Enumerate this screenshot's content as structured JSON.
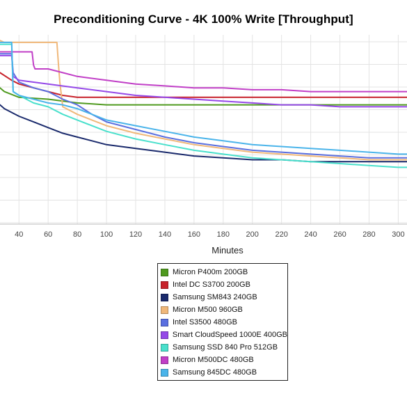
{
  "chart_data": {
    "type": "line",
    "title": "Preconditioning Curve - 4K 100% Write [Throughput]",
    "xlabel": "Minutes",
    "ylabel": "",
    "x_ticks": [
      40,
      60,
      80,
      100,
      120,
      140,
      160,
      180,
      200,
      220,
      240,
      260,
      280,
      300
    ],
    "xlim": [
      27,
      306
    ],
    "ylim": [
      0,
      100
    ],
    "grid": true,
    "legend_position": "bottom-center",
    "series": [
      {
        "name": "Micron P400m 200GB",
        "color": "#4f9a1f",
        "values": [
          [
            27,
            72
          ],
          [
            30,
            70
          ],
          [
            40,
            67
          ],
          [
            60,
            66
          ],
          [
            80,
            64
          ],
          [
            100,
            63
          ],
          [
            120,
            63
          ],
          [
            140,
            63
          ],
          [
            160,
            63
          ],
          [
            180,
            63
          ],
          [
            200,
            63
          ],
          [
            220,
            63
          ],
          [
            240,
            63
          ],
          [
            260,
            63
          ],
          [
            280,
            63
          ],
          [
            300,
            63
          ],
          [
            306,
            63
          ]
        ]
      },
      {
        "name": "Intel DC S3700 200GB",
        "color": "#c8232c",
        "values": [
          [
            27,
            80
          ],
          [
            35,
            76
          ],
          [
            40,
            74
          ],
          [
            50,
            72
          ],
          [
            60,
            70
          ],
          [
            70,
            68
          ],
          [
            80,
            67
          ],
          [
            90,
            67
          ],
          [
            100,
            67
          ],
          [
            120,
            67
          ],
          [
            140,
            67
          ],
          [
            160,
            67
          ],
          [
            180,
            67
          ],
          [
            200,
            67
          ],
          [
            220,
            67
          ],
          [
            240,
            67
          ],
          [
            260,
            67
          ],
          [
            280,
            67
          ],
          [
            300,
            67
          ],
          [
            306,
            67
          ]
        ]
      },
      {
        "name": "Samsung SM843 240GB",
        "color": "#1a2a6c",
        "values": [
          [
            27,
            63
          ],
          [
            30,
            61
          ],
          [
            40,
            57
          ],
          [
            50,
            54
          ],
          [
            60,
            51
          ],
          [
            70,
            48
          ],
          [
            80,
            46
          ],
          [
            90,
            44
          ],
          [
            100,
            42
          ],
          [
            120,
            40
          ],
          [
            140,
            38
          ],
          [
            160,
            36
          ],
          [
            180,
            35
          ],
          [
            200,
            34
          ],
          [
            220,
            34
          ],
          [
            240,
            33
          ],
          [
            260,
            33
          ],
          [
            280,
            33
          ],
          [
            300,
            33
          ],
          [
            306,
            33
          ]
        ]
      },
      {
        "name": "Micron M500 960GB",
        "color": "#f0b87a",
        "values": [
          [
            27,
            97
          ],
          [
            30,
            96
          ],
          [
            40,
            96
          ],
          [
            50,
            96
          ],
          [
            60,
            96
          ],
          [
            66,
            96
          ],
          [
            67,
            85
          ],
          [
            68,
            75
          ],
          [
            70,
            62
          ],
          [
            80,
            58
          ],
          [
            90,
            55
          ],
          [
            100,
            52
          ],
          [
            120,
            48
          ],
          [
            140,
            45
          ],
          [
            160,
            42
          ],
          [
            180,
            40
          ],
          [
            200,
            38
          ],
          [
            220,
            37
          ],
          [
            240,
            36
          ],
          [
            260,
            35
          ],
          [
            280,
            34
          ],
          [
            300,
            34
          ],
          [
            306,
            34
          ]
        ]
      },
      {
        "name": "Intel S3500 480GB",
        "color": "#5a6fe0",
        "values": [
          [
            27,
            90
          ],
          [
            30,
            90
          ],
          [
            35,
            90
          ],
          [
            36,
            80
          ],
          [
            40,
            75
          ],
          [
            50,
            72
          ],
          [
            60,
            70
          ],
          [
            70,
            66
          ],
          [
            80,
            63
          ],
          [
            90,
            58
          ],
          [
            100,
            54
          ],
          [
            120,
            50
          ],
          [
            140,
            46
          ],
          [
            160,
            43
          ],
          [
            180,
            41
          ],
          [
            200,
            39
          ],
          [
            220,
            38
          ],
          [
            240,
            37
          ],
          [
            260,
            36
          ],
          [
            280,
            35
          ],
          [
            300,
            35
          ],
          [
            306,
            35
          ]
        ]
      },
      {
        "name": "Smart CloudSpeed 1000E 400GB",
        "color": "#9548e8",
        "values": [
          [
            27,
            89
          ],
          [
            35,
            89
          ],
          [
            36,
            78
          ],
          [
            40,
            76
          ],
          [
            60,
            74
          ],
          [
            80,
            72
          ],
          [
            100,
            70
          ],
          [
            120,
            68
          ],
          [
            140,
            67
          ],
          [
            160,
            66
          ],
          [
            180,
            65
          ],
          [
            200,
            64
          ],
          [
            220,
            63
          ],
          [
            240,
            63
          ],
          [
            260,
            62
          ],
          [
            280,
            62
          ],
          [
            300,
            62
          ],
          [
            306,
            62
          ]
        ]
      },
      {
        "name": "Samsung SSD 840 Pro 512GB",
        "color": "#49e0cc",
        "values": [
          [
            27,
            95
          ],
          [
            30,
            95
          ],
          [
            35,
            95
          ],
          [
            36,
            70
          ],
          [
            40,
            68
          ],
          [
            50,
            64
          ],
          [
            60,
            62
          ],
          [
            70,
            58
          ],
          [
            80,
            55
          ],
          [
            90,
            52
          ],
          [
            100,
            49
          ],
          [
            120,
            45
          ],
          [
            140,
            42
          ],
          [
            160,
            39
          ],
          [
            180,
            37
          ],
          [
            200,
            35
          ],
          [
            220,
            34
          ],
          [
            240,
            33
          ],
          [
            260,
            32
          ],
          [
            280,
            31
          ],
          [
            300,
            30
          ],
          [
            306,
            30
          ]
        ]
      },
      {
        "name": "Micron M500DC 480GB",
        "color": "#c13fc7",
        "values": [
          [
            27,
            91
          ],
          [
            40,
            91
          ],
          [
            49,
            91
          ],
          [
            50,
            84
          ],
          [
            51,
            82
          ],
          [
            60,
            82
          ],
          [
            70,
            80
          ],
          [
            80,
            78
          ],
          [
            100,
            76
          ],
          [
            120,
            74
          ],
          [
            140,
            73
          ],
          [
            160,
            72
          ],
          [
            180,
            72
          ],
          [
            200,
            71
          ],
          [
            220,
            71
          ],
          [
            240,
            70
          ],
          [
            260,
            70
          ],
          [
            280,
            70
          ],
          [
            300,
            70
          ],
          [
            306,
            70
          ]
        ]
      },
      {
        "name": "Samsung 845DC 480GB",
        "color": "#4ab4ea",
        "values": [
          [
            27,
            96
          ],
          [
            30,
            96
          ],
          [
            35,
            96
          ],
          [
            36,
            70
          ],
          [
            40,
            68
          ],
          [
            50,
            66
          ],
          [
            60,
            64
          ],
          [
            70,
            63
          ],
          [
            80,
            61
          ],
          [
            90,
            58
          ],
          [
            100,
            55
          ],
          [
            120,
            52
          ],
          [
            140,
            49
          ],
          [
            160,
            46
          ],
          [
            180,
            44
          ],
          [
            200,
            42
          ],
          [
            220,
            41
          ],
          [
            240,
            40
          ],
          [
            260,
            39
          ],
          [
            280,
            38
          ],
          [
            300,
            37
          ],
          [
            306,
            37
          ]
        ]
      }
    ]
  }
}
